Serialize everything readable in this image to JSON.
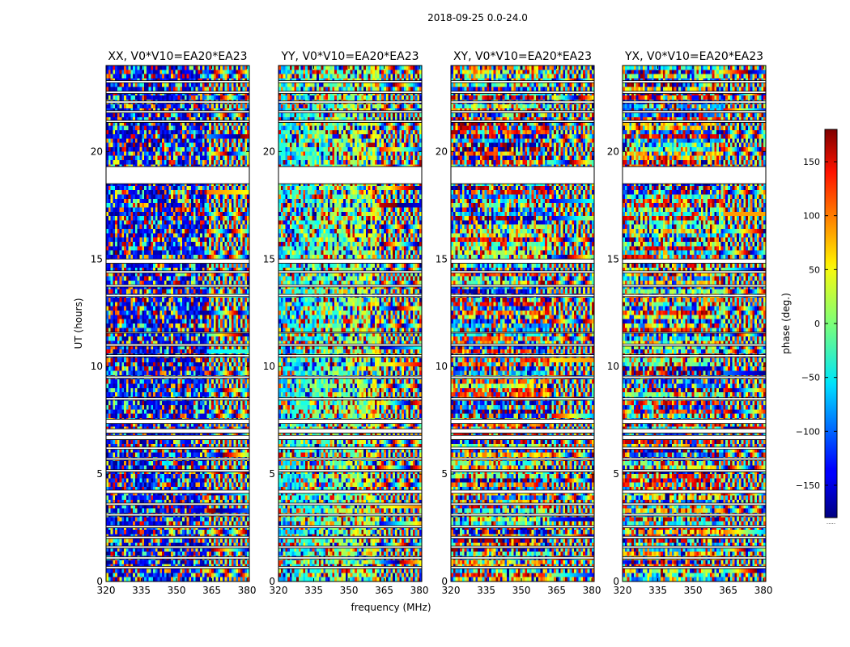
{
  "suptitle": "2018-09-25 0.0-24.0",
  "chart_data": {
    "type": "heatmap",
    "title": "2018-09-25 0.0-24.0",
    "xlabel": "frequency (MHz)",
    "ylabel": "UT (hours)",
    "xlim": [
      320,
      381
    ],
    "ylim": [
      0,
      24
    ],
    "x_ticks": [
      320,
      335,
      350,
      365,
      380
    ],
    "y_ticks": [
      0,
      5,
      10,
      15,
      20
    ],
    "colorbar": {
      "label": "phase (deg.)",
      "range": [
        -180,
        180
      ],
      "ticks": [
        150,
        100,
        50,
        0,
        -50,
        -100,
        -150
      ],
      "tick_labels": [
        "150",
        "100",
        "50",
        "0",
        "−50",
        "−100",
        "−150"
      ],
      "colormap": "jet",
      "bottom_label": "....."
    },
    "panels": [
      {
        "title": "XX, V0*V10=EA20*EA23"
      },
      {
        "title": "YY, V0*V10=EA20*EA23"
      },
      {
        "title": "XY, V0*V10=EA20*EA23"
      },
      {
        "title": "YX, V0*V10=EA20*EA23"
      }
    ],
    "gaps_ut": [
      [
        19.3,
        18.5
      ],
      [
        15.0,
        14.8
      ],
      [
        14.45,
        14.35
      ],
      [
        13.8,
        13.7
      ],
      [
        13.35,
        13.25
      ],
      [
        11.6,
        11.55
      ],
      [
        11.05,
        10.95
      ],
      [
        10.55,
        10.45
      ],
      [
        9.55,
        9.45
      ],
      [
        8.55,
        8.45
      ],
      [
        7.55,
        7.35
      ],
      [
        7.1,
        6.9
      ],
      [
        6.8,
        6.6
      ],
      [
        6.25,
        6.15
      ],
      [
        5.75,
        5.65
      ],
      [
        5.2,
        5.1
      ],
      [
        4.25,
        4.1
      ],
      [
        3.65,
        3.55
      ],
      [
        3.15,
        3.05
      ],
      [
        2.6,
        2.5
      ],
      [
        2.1,
        2.0
      ],
      [
        1.65,
        1.55
      ],
      [
        1.15,
        1.05
      ],
      [
        0.7,
        0.6
      ],
      [
        23.3,
        23.2
      ],
      [
        22.8,
        22.7
      ],
      [
        22.35,
        22.25
      ],
      [
        21.9,
        21.8
      ],
      [
        21.45,
        21.35
      ]
    ]
  }
}
